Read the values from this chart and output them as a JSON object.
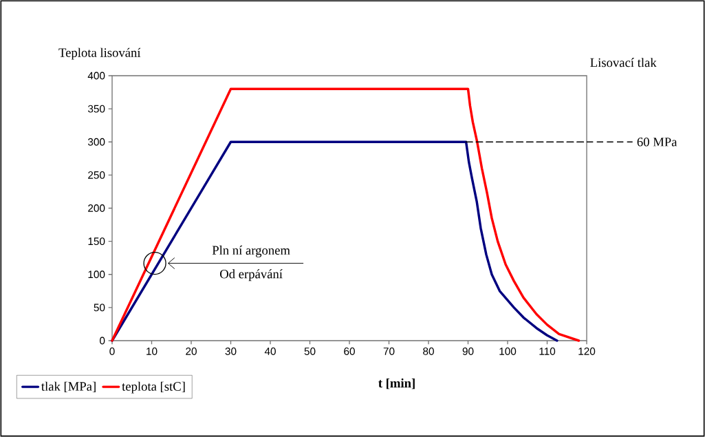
{
  "chart_data": {
    "type": "line",
    "xlabel": "t [min]",
    "ylabel": "Teplota lisování",
    "y2label": "Lisovací tlak",
    "xlim": [
      0,
      120
    ],
    "xticks": [
      0,
      10,
      20,
      30,
      40,
      50,
      60,
      70,
      80,
      90,
      100,
      110,
      120
    ],
    "ylim": [
      0,
      400
    ],
    "yticks": [
      0,
      50,
      100,
      150,
      200,
      250,
      300,
      350,
      400
    ],
    "grid": false,
    "legend": "bottom left",
    "series": [
      {
        "name": "tlak [MPa]",
        "color": "#000080",
        "x": [
          0,
          30,
          89.5,
          90.2,
          91,
          92.2,
          93.2,
          94.6,
          96,
          98,
          101.6,
          104,
          107.3,
          110,
          112.5
        ],
        "values": [
          0,
          300,
          300,
          270,
          245,
          210,
          170,
          130,
          100,
          75,
          50,
          35,
          19,
          8,
          0
        ]
      },
      {
        "name": "teplota [stC]",
        "color": "#ff0000",
        "x": [
          0,
          30,
          90,
          90.5,
          91.2,
          92.3,
          93.5,
          94.8,
          96,
          97.5,
          99.5,
          101.6,
          104,
          107.3,
          110,
          113,
          118
        ],
        "values": [
          0,
          380,
          380,
          355,
          330,
          300,
          260,
          223,
          185,
          150,
          115,
          90,
          65,
          40,
          24,
          10,
          0
        ]
      },
      {
        "type": "line",
        "color": "#000000",
        "line_style": "dashed",
        "x": [
          89.5,
          120
        ],
        "values": [
          300,
          300
        ]
      }
    ],
    "annotations": [
      "60 MPa",
      "Pln ní argonem",
      "Od erpávání"
    ]
  }
}
